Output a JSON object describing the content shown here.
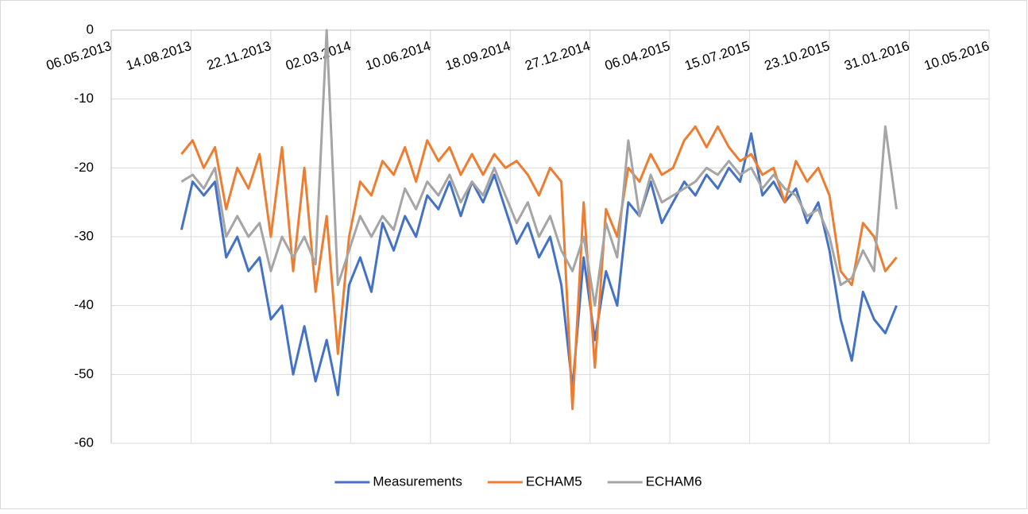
{
  "chart_data": {
    "type": "line",
    "x": [
      "02.08.2013",
      "16.08.2013",
      "30.08.2013",
      "13.09.2013",
      "27.09.2013",
      "11.10.2013",
      "25.10.2013",
      "08.11.2013",
      "22.11.2013",
      "06.12.2013",
      "20.12.2013",
      "03.01.2014",
      "17.01.2014",
      "31.01.2014",
      "14.02.2014",
      "28.02.2014",
      "14.03.2014",
      "28.03.2014",
      "11.04.2014",
      "25.04.2014",
      "09.05.2014",
      "23.05.2014",
      "06.06.2014",
      "20.06.2014",
      "04.07.2014",
      "18.07.2014",
      "01.08.2014",
      "15.08.2014",
      "29.08.2014",
      "12.09.2014",
      "26.09.2014",
      "10.10.2014",
      "24.10.2014",
      "07.11.2014",
      "21.11.2014",
      "05.12.2014",
      "19.12.2014",
      "02.01.2015",
      "16.01.2015",
      "30.01.2015",
      "13.02.2015",
      "27.02.2015",
      "13.03.2015",
      "27.03.2015",
      "10.04.2015",
      "24.04.2015",
      "08.05.2015",
      "22.05.2015",
      "05.06.2015",
      "19.06.2015",
      "03.07.2015",
      "17.07.2015",
      "31.07.2015",
      "14.08.2015",
      "28.08.2015",
      "11.09.2015",
      "25.09.2015",
      "09.10.2015",
      "23.10.2015",
      "06.11.2015",
      "20.11.2015",
      "04.12.2015",
      "18.12.2015",
      "01.01.2016",
      "15.01.2016"
    ],
    "series": [
      {
        "name": "Measurements",
        "color": "#4472c4",
        "values": [
          -29,
          -22,
          -24,
          -22,
          -33,
          -30,
          -35,
          -33,
          -42,
          -40,
          -50,
          -43,
          -51,
          -45,
          -53,
          -37,
          -33,
          -38,
          -28,
          -32,
          -27,
          -30,
          -24,
          -26,
          -22,
          -27,
          -22,
          -25,
          -21,
          -26,
          -31,
          -28,
          -33,
          -30,
          -37,
          -52,
          -33,
          -45,
          -35,
          -40,
          -25,
          -27,
          -22,
          -28,
          -25,
          -22,
          -24,
          -21,
          -23,
          -20,
          -22,
          -15,
          -24,
          -22,
          -25,
          -23,
          -28,
          -25,
          -32,
          -42,
          -48,
          -38,
          -42,
          -44,
          -40
        ]
      },
      {
        "name": "ECHAM5",
        "color": "#ed7d31",
        "values": [
          -18,
          -16,
          -20,
          -17,
          -26,
          -20,
          -23,
          -18,
          -30,
          -17,
          -35,
          -20,
          -38,
          -27,
          -47,
          -30,
          -22,
          -24,
          -19,
          -21,
          -17,
          -22,
          -16,
          -19,
          -17,
          -21,
          -18,
          -21,
          -18,
          -20,
          -19,
          -21,
          -24,
          -20,
          -22,
          -55,
          -25,
          -49,
          -26,
          -30,
          -20,
          -22,
          -18,
          -21,
          -20,
          -16,
          -14,
          -17,
          -14,
          -17,
          -19,
          -18,
          -21,
          -20,
          -25,
          -19,
          -22,
          -20,
          -24,
          -35,
          -37,
          -28,
          -30,
          -35,
          -33
        ]
      },
      {
        "name": "ECHAM6",
        "color": "#a5a5a5",
        "values": [
          -22,
          -21,
          -23,
          -20,
          -30,
          -27,
          -30,
          -28,
          -35,
          -30,
          -33,
          -30,
          -34,
          0,
          -37,
          -32,
          -27,
          -30,
          -27,
          -29,
          -23,
          -26,
          -22,
          -24,
          -21,
          -25,
          -22,
          -24,
          -20,
          -24,
          -28,
          -25,
          -30,
          -27,
          -32,
          -35,
          -30,
          -40,
          -28,
          -33,
          -16,
          -27,
          -21,
          -25,
          -24,
          -23,
          -22,
          -20,
          -21,
          -19,
          -21,
          -20,
          -23,
          -21,
          -23,
          -24,
          -27,
          -26,
          -30,
          -37,
          -36,
          -32,
          -35,
          -14,
          -26
        ]
      }
    ],
    "xlim": [
      "06.05.2013",
      "10.05.2016"
    ],
    "xticks": [
      "06.05.2013",
      "14.08.2013",
      "22.11.2013",
      "02.03.2014",
      "10.06.2014",
      "18.09.2014",
      "27.12.2014",
      "06.04.2015",
      "15.07.2015",
      "23.10.2015",
      "31.01.2016",
      "10.05.2016"
    ],
    "ylim": [
      -60,
      0
    ],
    "yticks": [
      -60,
      -50,
      -40,
      -30,
      -20,
      -10,
      0
    ],
    "grid": true,
    "legend": "bottom"
  }
}
